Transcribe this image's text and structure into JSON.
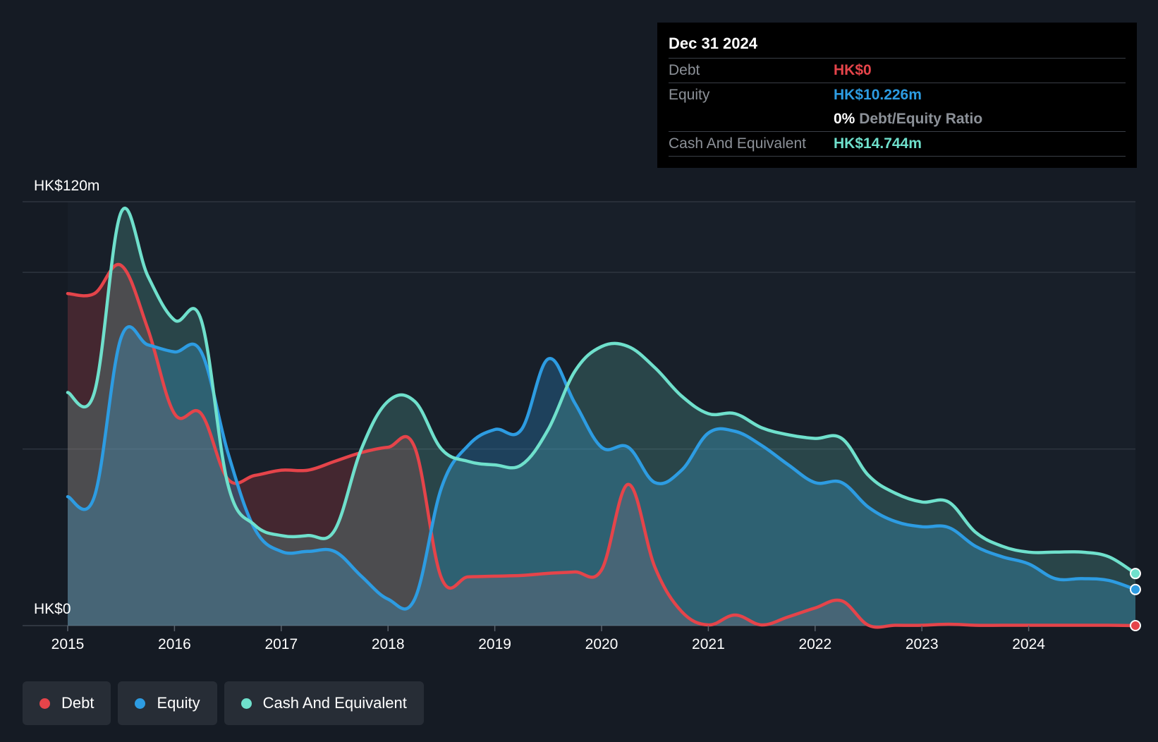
{
  "tooltip": {
    "date": "Dec 31 2024",
    "debt_label": "Debt",
    "debt_value": "HK$0",
    "equity_label": "Equity",
    "equity_value": "HK$10.226m",
    "ratio_pct": "0%",
    "ratio_label": "Debt/Equity Ratio",
    "cash_label": "Cash And Equivalent",
    "cash_value": "HK$14.744m"
  },
  "legend": [
    {
      "label": "Debt",
      "color": "#e5444a"
    },
    {
      "label": "Equity",
      "color": "#2d9ce2"
    },
    {
      "label": "Cash And Equivalent",
      "color": "#6fe0cc"
    }
  ],
  "chart_data": {
    "type": "area",
    "y_top_label": "HK$120m",
    "y_bottom_label": "HK$0",
    "ylim": [
      0,
      120
    ],
    "xlim": [
      2015.0,
      2025.0
    ],
    "x_ticks": [
      "2015",
      "2016",
      "2017",
      "2018",
      "2019",
      "2020",
      "2021",
      "2022",
      "2023",
      "2024"
    ],
    "grid": true,
    "series": [
      {
        "name": "Debt",
        "color": "#e5444a",
        "points": [
          [
            2015.0,
            94
          ],
          [
            2015.25,
            94
          ],
          [
            2015.5,
            102
          ],
          [
            2015.75,
            84
          ],
          [
            2016.0,
            60
          ],
          [
            2016.25,
            60
          ],
          [
            2016.5,
            41.5
          ],
          [
            2016.75,
            42.5
          ],
          [
            2017.0,
            44
          ],
          [
            2017.25,
            44
          ],
          [
            2017.5,
            46.5
          ],
          [
            2017.75,
            49
          ],
          [
            2018.0,
            50.5
          ],
          [
            2018.25,
            50.5
          ],
          [
            2018.5,
            13.5
          ],
          [
            2018.75,
            13.8
          ],
          [
            2019.0,
            14
          ],
          [
            2019.25,
            14.2
          ],
          [
            2019.5,
            14.8
          ],
          [
            2019.75,
            15.2
          ],
          [
            2020.0,
            15.8
          ],
          [
            2020.25,
            40
          ],
          [
            2020.5,
            16.5
          ],
          [
            2020.75,
            4
          ],
          [
            2021.0,
            0.2
          ],
          [
            2021.25,
            3
          ],
          [
            2021.5,
            0.2
          ],
          [
            2021.75,
            2.5
          ],
          [
            2022.0,
            5
          ],
          [
            2022.25,
            7
          ],
          [
            2022.5,
            0.1
          ],
          [
            2022.75,
            0.1
          ],
          [
            2023.0,
            0.1
          ],
          [
            2023.25,
            0.4
          ],
          [
            2023.5,
            0.1
          ],
          [
            2023.75,
            0.1
          ],
          [
            2024.0,
            0.1
          ],
          [
            2024.25,
            0.1
          ],
          [
            2024.5,
            0.1
          ],
          [
            2024.75,
            0.1
          ],
          [
            2025.0,
            0
          ]
        ]
      },
      {
        "name": "Equity",
        "color": "#2d9ce2",
        "points": [
          [
            2015.0,
            36.5
          ],
          [
            2015.25,
            36.5
          ],
          [
            2015.5,
            81.5
          ],
          [
            2015.75,
            79.5
          ],
          [
            2016.0,
            77.5
          ],
          [
            2016.25,
            77.5
          ],
          [
            2016.5,
            49
          ],
          [
            2016.75,
            27.5
          ],
          [
            2017.0,
            21
          ],
          [
            2017.25,
            21
          ],
          [
            2017.5,
            21
          ],
          [
            2017.75,
            14
          ],
          [
            2018.0,
            7.5
          ],
          [
            2018.25,
            7.5
          ],
          [
            2018.5,
            39
          ],
          [
            2018.75,
            51
          ],
          [
            2019.0,
            55.5
          ],
          [
            2019.25,
            55.5
          ],
          [
            2019.5,
            75.5
          ],
          [
            2019.75,
            63
          ],
          [
            2020.0,
            50.5
          ],
          [
            2020.25,
            50.5
          ],
          [
            2020.5,
            40.5
          ],
          [
            2020.75,
            44
          ],
          [
            2021.0,
            54.5
          ],
          [
            2021.25,
            55
          ],
          [
            2021.5,
            51
          ],
          [
            2021.75,
            45.5
          ],
          [
            2022.0,
            40.5
          ],
          [
            2022.25,
            40.5
          ],
          [
            2022.5,
            33.5
          ],
          [
            2022.75,
            29.5
          ],
          [
            2023.0,
            28
          ],
          [
            2023.25,
            27.8
          ],
          [
            2023.5,
            22.5
          ],
          [
            2023.75,
            19.5
          ],
          [
            2024.0,
            17.5
          ],
          [
            2024.25,
            13.3
          ],
          [
            2024.5,
            13.3
          ],
          [
            2024.75,
            12.8
          ],
          [
            2025.0,
            10.226
          ]
        ]
      },
      {
        "name": "Cash And Equivalent",
        "color": "#6fe0cc",
        "points": [
          [
            2015.0,
            66
          ],
          [
            2015.25,
            66
          ],
          [
            2015.5,
            117
          ],
          [
            2015.75,
            99
          ],
          [
            2016.0,
            86.5
          ],
          [
            2016.25,
            86.5
          ],
          [
            2016.5,
            40
          ],
          [
            2016.75,
            28.5
          ],
          [
            2017.0,
            25.5
          ],
          [
            2017.25,
            25.5
          ],
          [
            2017.5,
            27
          ],
          [
            2017.75,
            50
          ],
          [
            2018.0,
            63.5
          ],
          [
            2018.25,
            63.5
          ],
          [
            2018.5,
            50
          ],
          [
            2018.75,
            46.5
          ],
          [
            2019.0,
            45.5
          ],
          [
            2019.25,
            45.5
          ],
          [
            2019.5,
            55.5
          ],
          [
            2019.75,
            72
          ],
          [
            2020.0,
            79
          ],
          [
            2020.25,
            79
          ],
          [
            2020.5,
            73
          ],
          [
            2020.75,
            65
          ],
          [
            2021.0,
            60
          ],
          [
            2021.25,
            60
          ],
          [
            2021.5,
            56
          ],
          [
            2021.75,
            54
          ],
          [
            2022.0,
            53
          ],
          [
            2022.25,
            53
          ],
          [
            2022.5,
            42.5
          ],
          [
            2022.75,
            37.5
          ],
          [
            2023.0,
            35
          ],
          [
            2023.25,
            35
          ],
          [
            2023.5,
            26.5
          ],
          [
            2023.75,
            22.5
          ],
          [
            2024.0,
            20.8
          ],
          [
            2024.25,
            20.8
          ],
          [
            2024.5,
            20.8
          ],
          [
            2024.75,
            19.5
          ],
          [
            2025.0,
            14.744
          ]
        ]
      }
    ]
  }
}
